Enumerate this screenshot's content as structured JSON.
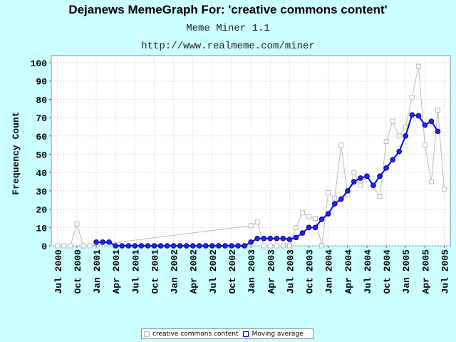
{
  "header": {
    "title": "Dejanews MemeGraph For: 'creative commons content'",
    "subtitle": "Meme Miner 1.1",
    "url": "http://www.realmeme.com/miner"
  },
  "colors": {
    "background": "#CCFFFF",
    "plot_background": "#FFFFFF",
    "raw_series": "#BBBBBB",
    "moving_average": "#0000FF"
  },
  "chart_data": {
    "type": "line",
    "ylabel": "Frequency Count",
    "xlabel": "",
    "ylim": [
      0,
      100
    ],
    "yticks": [
      0,
      10,
      20,
      30,
      40,
      50,
      60,
      70,
      80,
      90,
      100
    ],
    "x_tick_labels": [
      "Jul 2000",
      "Oct 2000",
      "Jan 2001",
      "Apr 2001",
      "Jul 2001",
      "Oct 2001",
      "Jan 2002",
      "Apr 2002",
      "Jul 2002",
      "Oct 2002",
      "Jan 2003",
      "Apr 2003",
      "Jul 2003",
      "Oct 2003",
      "Jan 2004",
      "Apr 2004",
      "Jul 2004",
      "Oct 2004",
      "Jan 2005",
      "Apr 2005",
      "Jul 2005"
    ],
    "grid": true,
    "legend_position": "bottom",
    "series": [
      {
        "name": "creative commons content",
        "marker": "square",
        "points": [
          [
            "2000-07",
            0
          ],
          [
            "2000-08",
            0
          ],
          [
            "2000-09",
            0
          ],
          [
            "2000-10",
            12
          ],
          [
            "2000-11",
            0
          ],
          [
            "2000-12",
            0
          ],
          [
            "2003-01",
            11
          ],
          [
            "2003-02",
            13
          ],
          [
            "2003-03",
            0
          ],
          [
            "2003-04",
            0
          ],
          [
            "2003-05",
            0
          ],
          [
            "2003-06",
            0
          ],
          [
            "2003-07",
            0
          ],
          [
            "2003-08",
            10
          ],
          [
            "2003-09",
            18
          ],
          [
            "2003-10",
            16
          ],
          [
            "2003-11",
            15
          ],
          [
            "2003-12",
            0
          ],
          [
            "2004-01",
            29
          ],
          [
            "2004-02",
            26
          ],
          [
            "2004-03",
            55
          ],
          [
            "2004-04",
            28
          ],
          [
            "2004-05",
            40
          ],
          [
            "2004-06",
            33
          ],
          [
            "2004-07",
            38
          ],
          [
            "2004-08",
            32
          ],
          [
            "2004-09",
            27
          ],
          [
            "2004-10",
            57
          ],
          [
            "2004-11",
            68
          ],
          [
            "2004-12",
            60
          ],
          [
            "2005-01",
            65
          ],
          [
            "2005-02",
            81
          ],
          [
            "2005-03",
            98
          ],
          [
            "2005-04",
            55
          ],
          [
            "2005-05",
            35
          ],
          [
            "2005-06",
            74
          ],
          [
            "2005-07",
            31
          ]
        ]
      },
      {
        "name": "Moving average",
        "marker": "circle",
        "points": [
          [
            "2001-01",
            2
          ],
          [
            "2001-02",
            2
          ],
          [
            "2001-03",
            2
          ],
          [
            "2001-04",
            0
          ],
          [
            "2001-05",
            0
          ],
          [
            "2001-06",
            0
          ],
          [
            "2001-07",
            0
          ],
          [
            "2001-08",
            0
          ],
          [
            "2001-09",
            0
          ],
          [
            "2001-10",
            0
          ],
          [
            "2001-11",
            0
          ],
          [
            "2001-12",
            0
          ],
          [
            "2002-01",
            0
          ],
          [
            "2002-02",
            0
          ],
          [
            "2002-03",
            0
          ],
          [
            "2002-04",
            0
          ],
          [
            "2002-05",
            0
          ],
          [
            "2002-06",
            0
          ],
          [
            "2002-07",
            0
          ],
          [
            "2002-08",
            0
          ],
          [
            "2002-09",
            0
          ],
          [
            "2002-10",
            0
          ],
          [
            "2002-11",
            0
          ],
          [
            "2002-12",
            0
          ],
          [
            "2003-01",
            2
          ],
          [
            "2003-02",
            4
          ],
          [
            "2003-03",
            4
          ],
          [
            "2003-04",
            4
          ],
          [
            "2003-05",
            4
          ],
          [
            "2003-06",
            4
          ],
          [
            "2003-07",
            3.5
          ],
          [
            "2003-08",
            4.5
          ],
          [
            "2003-09",
            7
          ],
          [
            "2003-10",
            10
          ],
          [
            "2003-11",
            10
          ],
          [
            "2003-12",
            14.5
          ],
          [
            "2004-01",
            17.5
          ],
          [
            "2004-02",
            23
          ],
          [
            "2004-03",
            25.5
          ],
          [
            "2004-04",
            30
          ],
          [
            "2004-05",
            35
          ],
          [
            "2004-06",
            37
          ],
          [
            "2004-07",
            38
          ],
          [
            "2004-08",
            33
          ],
          [
            "2004-09",
            38
          ],
          [
            "2004-10",
            42.5
          ],
          [
            "2004-11",
            47
          ],
          [
            "2004-12",
            51.5
          ],
          [
            "2005-01",
            60
          ],
          [
            "2005-02",
            71.5
          ],
          [
            "2005-03",
            71
          ],
          [
            "2005-04",
            66
          ],
          [
            "2005-05",
            68
          ],
          [
            "2005-06",
            62.5
          ]
        ]
      }
    ]
  }
}
